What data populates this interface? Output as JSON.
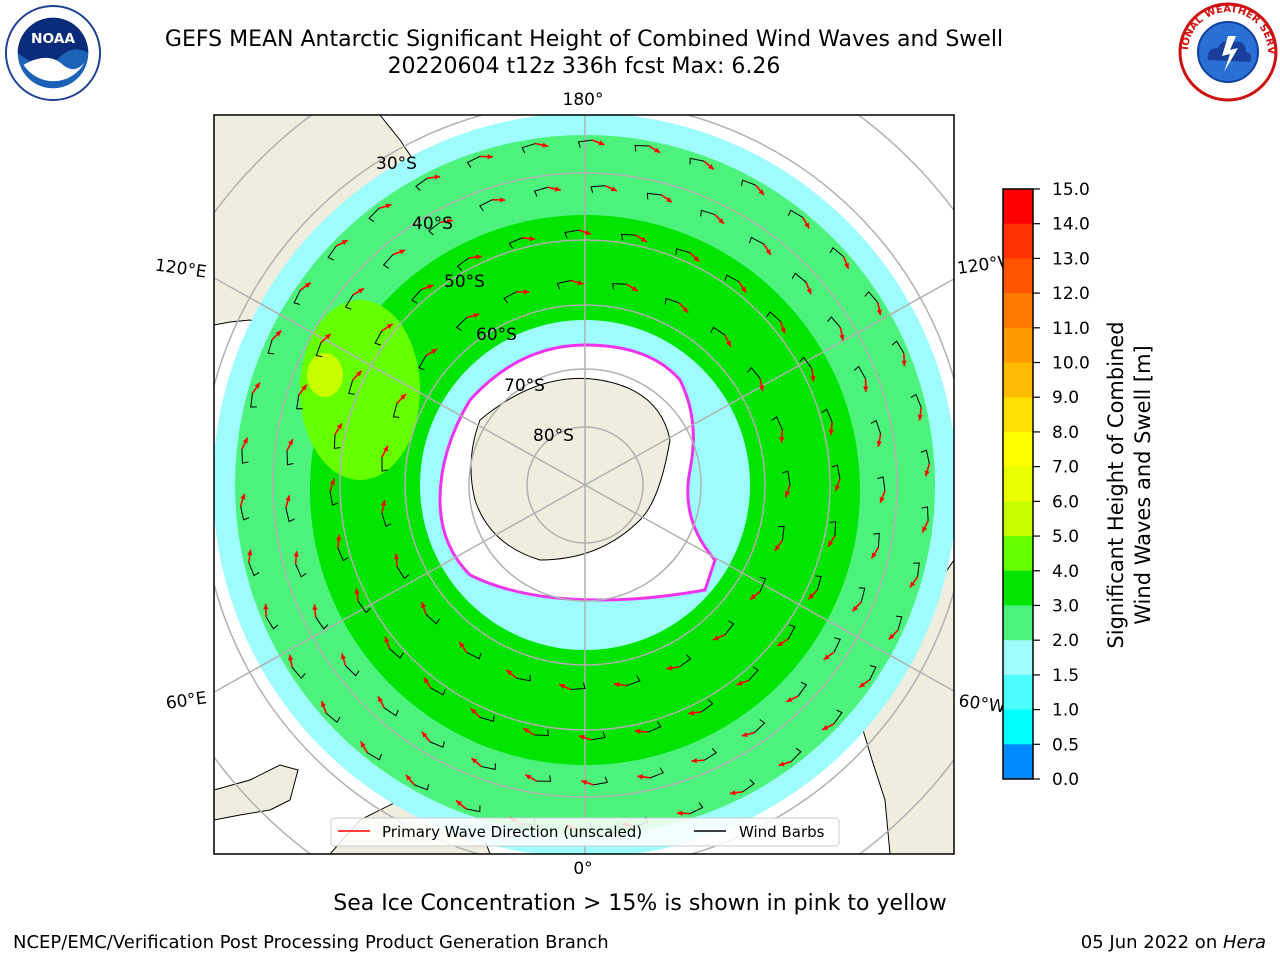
{
  "header": {
    "title_line1": "GEFS MEAN Antarctic Significant Height of Combined Wind Waves and Swell",
    "title_line2": "20220604 t12z 336h fcst   Max: 6.26"
  },
  "logos": {
    "left": "noaa-logo",
    "left_text": "NOAA",
    "right": "nws-logo",
    "right_text": "NATIONAL WEATHER SERVICE"
  },
  "map": {
    "projection": "south-polar-stereographic",
    "longitude_labels": {
      "top": "180°",
      "bottom": "0°",
      "upper_left": "120°E",
      "lower_left": "60°E",
      "upper_right": "120°W",
      "lower_right": "60°W"
    },
    "latitude_labels": [
      "30°S",
      "40°S",
      "50°S",
      "60°S",
      "70°S",
      "80°S"
    ],
    "legend": {
      "primary_wave_direction": "Primary Wave Direction (unscaled)",
      "wind_barbs": "Wind Barbs"
    },
    "colors": {
      "land": "#efedde",
      "ocean_low": "#9ffcfc",
      "ocean_mid": "#4cf27b",
      "ocean_high": "#00e400",
      "sea_ice_edge": "#ee33ee",
      "wave_arrow": "#ff0000",
      "grid": "#b0b0b0"
    }
  },
  "colorbar": {
    "label_line1": "Significant Height of Combined",
    "label_line2": "Wind Waves and Swell [m]",
    "ticks": [
      "15.0",
      "14.0",
      "13.0",
      "12.0",
      "11.0",
      "10.0",
      "9.0",
      "8.0",
      "7.0",
      "6.0",
      "5.0",
      "4.0",
      "3.0",
      "2.0",
      "1.5",
      "1.0",
      "0.5",
      "0.0"
    ],
    "colors": [
      "#ff0000",
      "#ff3300",
      "#ff5500",
      "#ff7a00",
      "#ff9a00",
      "#ffbb00",
      "#ffe000",
      "#ffff00",
      "#eaff00",
      "#c8ff00",
      "#66ff00",
      "#00e400",
      "#4cf27b",
      "#9ffcfc",
      "#4dfcfc",
      "#00ffff",
      "#0088ff",
      "#0000ff"
    ]
  },
  "footnote": "Sea Ice Concentration > 15% is shown in pink to yellow",
  "credits": {
    "left": "NCEP/EMC/Verification Post Processing Product Generation Branch",
    "right_date": "05 Jun 2022 on ",
    "right_host": "Hera"
  }
}
